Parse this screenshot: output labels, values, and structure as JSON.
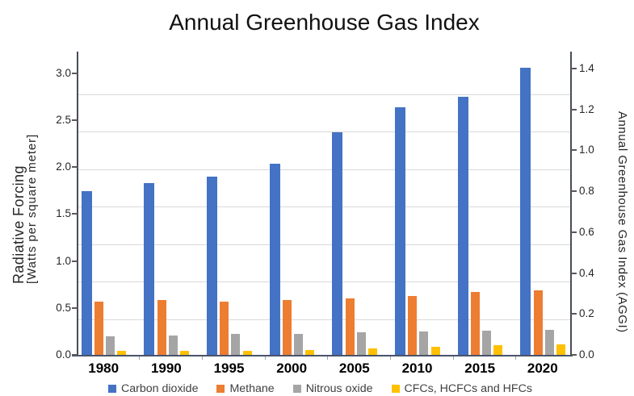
{
  "title": "Annual Greenhouse Gas Index",
  "left_axis": {
    "title_line1": "Radiative Forcing",
    "title_line2": "[Watts per square meter]",
    "tick_labels": [
      "0.0",
      "0.5",
      "1.0",
      "1.5",
      "2.0",
      "2.5",
      "3.0"
    ],
    "min": 0.0,
    "max": 3.0,
    "step": 0.5
  },
  "right_axis": {
    "title": "Annual Greenhouse Gas Index (AGGI)",
    "tick_labels": [
      "0.0",
      "0.2",
      "0.4",
      "0.6",
      "0.8",
      "1.0",
      "1.2",
      "1.4"
    ],
    "min": 0.0,
    "max": 1.4,
    "step": 0.2
  },
  "chart_data": {
    "type": "bar",
    "title": "Annual Greenhouse Gas Index",
    "categories": [
      "1980",
      "1990",
      "1995",
      "2000",
      "2005",
      "2010",
      "2015",
      "2020"
    ],
    "series": [
      {
        "name": "Carbon dioxide",
        "color": "#4472C4",
        "values": [
          1.74,
          1.83,
          1.9,
          2.04,
          2.37,
          2.64,
          2.75,
          3.06
        ]
      },
      {
        "name": "Methane",
        "color": "#ED7D31",
        "values": [
          0.57,
          0.58,
          0.57,
          0.58,
          0.6,
          0.63,
          0.67,
          0.69
        ]
      },
      {
        "name": "Nitrous oxide",
        "color": "#A5A5A5",
        "values": [
          0.2,
          0.21,
          0.22,
          0.22,
          0.24,
          0.25,
          0.26,
          0.27
        ]
      },
      {
        "name": "CFCs, HCFCs and HFCs",
        "color": "#FFC000",
        "values": [
          0.04,
          0.04,
          0.04,
          0.05,
          0.07,
          0.09,
          0.1,
          0.11
        ]
      }
    ],
    "ylabel_left": "Radiative Forcing [Watts per square meter]",
    "ylabel_right": "Annual Greenhouse Gas Index (AGGI)",
    "ylim_left": [
      0,
      3.0
    ],
    "ylim_right": [
      0,
      1.4
    ],
    "grid": true,
    "legend_position": "bottom"
  },
  "colors": {
    "gridline": "#d9d9d9",
    "axis": "#49536a",
    "text": "#262626"
  }
}
